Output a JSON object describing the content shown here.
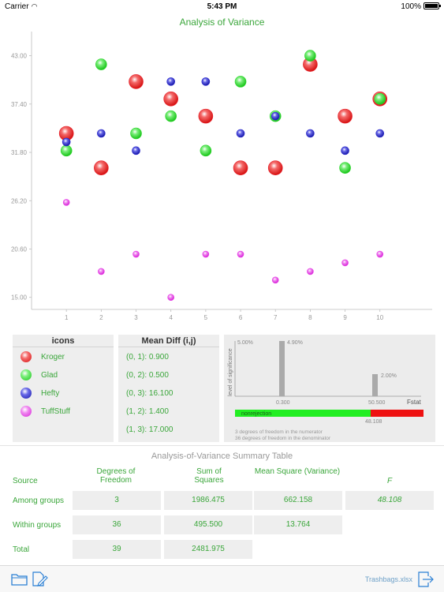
{
  "status_bar": {
    "carrier": "Carrier",
    "time": "5:43 PM",
    "battery": "100%"
  },
  "chart_title": "Analysis of Variance",
  "chart_data": {
    "type": "scatter",
    "title": "Analysis of Variance",
    "xlabel": "",
    "ylabel": "",
    "x_ticks": [
      "1",
      "2",
      "3",
      "4",
      "5",
      "6",
      "7",
      "8",
      "9",
      "10"
    ],
    "y_ticks": [
      "15.00",
      "20.60",
      "26.20",
      "31.80",
      "37.40",
      "43.00"
    ],
    "y_tick_values": [
      15.0,
      20.6,
      26.2,
      31.8,
      37.4,
      43.0
    ],
    "xlim": [
      0,
      11.5
    ],
    "ylim": [
      13.6,
      45.8
    ],
    "series": [
      {
        "name": "Kroger",
        "color": "#e8202a",
        "size": 9,
        "points": [
          [
            1,
            34.0
          ],
          [
            2,
            30.0
          ],
          [
            3,
            40.0
          ],
          [
            4,
            38.0
          ],
          [
            5,
            36.0
          ],
          [
            6,
            30.0
          ],
          [
            7,
            30.0
          ],
          [
            8,
            42.0
          ],
          [
            9,
            36.0
          ],
          [
            10,
            38.0
          ]
        ]
      },
      {
        "name": "Glad",
        "color": "#2bd62b",
        "size": 7,
        "points": [
          [
            1,
            32.0
          ],
          [
            2,
            42.0
          ],
          [
            3,
            34.0
          ],
          [
            4,
            36.0
          ],
          [
            5,
            32.0
          ],
          [
            6,
            40.0
          ],
          [
            7,
            36.0
          ],
          [
            8,
            43.0
          ],
          [
            9,
            30.0
          ],
          [
            10,
            38.0
          ]
        ]
      },
      {
        "name": "Hefty",
        "color": "#2626c9",
        "size": 5,
        "points": [
          [
            1,
            33.0
          ],
          [
            2,
            34.0
          ],
          [
            3,
            32.0
          ],
          [
            4,
            40.0
          ],
          [
            5,
            40.0
          ],
          [
            6,
            34.0
          ],
          [
            7,
            36.0
          ],
          [
            8,
            34.0
          ],
          [
            9,
            32.0
          ],
          [
            10,
            34.0
          ]
        ]
      },
      {
        "name": "TuffStuff",
        "color": "#e63ae6",
        "size": 4,
        "points": [
          [
            1,
            26.0
          ],
          [
            2,
            18.0
          ],
          [
            3,
            20.0
          ],
          [
            4,
            15.0
          ],
          [
            5,
            20.0
          ],
          [
            6,
            20.0
          ],
          [
            7,
            17.0
          ],
          [
            8,
            18.0
          ],
          [
            9,
            19.0
          ],
          [
            10,
            20.0
          ]
        ]
      }
    ]
  },
  "legend": {
    "header": "icons",
    "items": [
      {
        "label": "Kroger",
        "color": "#e8202a"
      },
      {
        "label": "Glad",
        "color": "#2bd62b"
      },
      {
        "label": "Hefty",
        "color": "#2626c9"
      },
      {
        "label": "TuffStuff",
        "color": "#e63ae6"
      }
    ]
  },
  "mean_diff": {
    "header": "Mean Diff (i,j)",
    "rows": [
      "(0, 1): 0.900",
      "(0, 2): 0.500",
      "(0, 3): 16.100",
      "(1, 2): 1.400",
      "(1, 3): 17.000"
    ]
  },
  "f_test": {
    "ylabel": "level of significance",
    "y_top_label": "5.00%",
    "bars": [
      {
        "label": "4.90%",
        "x_label": "0.300"
      },
      {
        "label": "2.00%",
        "x_label": "50.500"
      }
    ],
    "x_axis_label": "Fstat",
    "nonrejection_label": "nonrejection",
    "fstat_value": "48.108",
    "note_numerator": "3 degrees of freedom in the numerator",
    "note_denominator": "36 degrees of freedom in the denominator",
    "nonrejection_color": "#22ee22",
    "rejection_color": "#ee1111"
  },
  "summary": {
    "title": "Analysis-of-Variance Summary Table",
    "headers": {
      "source": "Source",
      "df": "Degrees of Freedom",
      "ss": "Sum of Squares",
      "ms": "Mean Square (Variance)",
      "f": "F"
    },
    "rows": [
      {
        "source": "Among groups",
        "df": "3",
        "ss": "1986.475",
        "ms": "662.158",
        "f": "48.108"
      },
      {
        "source": "Within groups",
        "df": "36",
        "ss": "495.500",
        "ms": "13.764",
        "f": ""
      },
      {
        "source": "Total",
        "df": "39",
        "ss": "2481.975",
        "ms": "",
        "f": ""
      }
    ]
  },
  "footer": {
    "file_name": "Trashbags.xlsx"
  }
}
